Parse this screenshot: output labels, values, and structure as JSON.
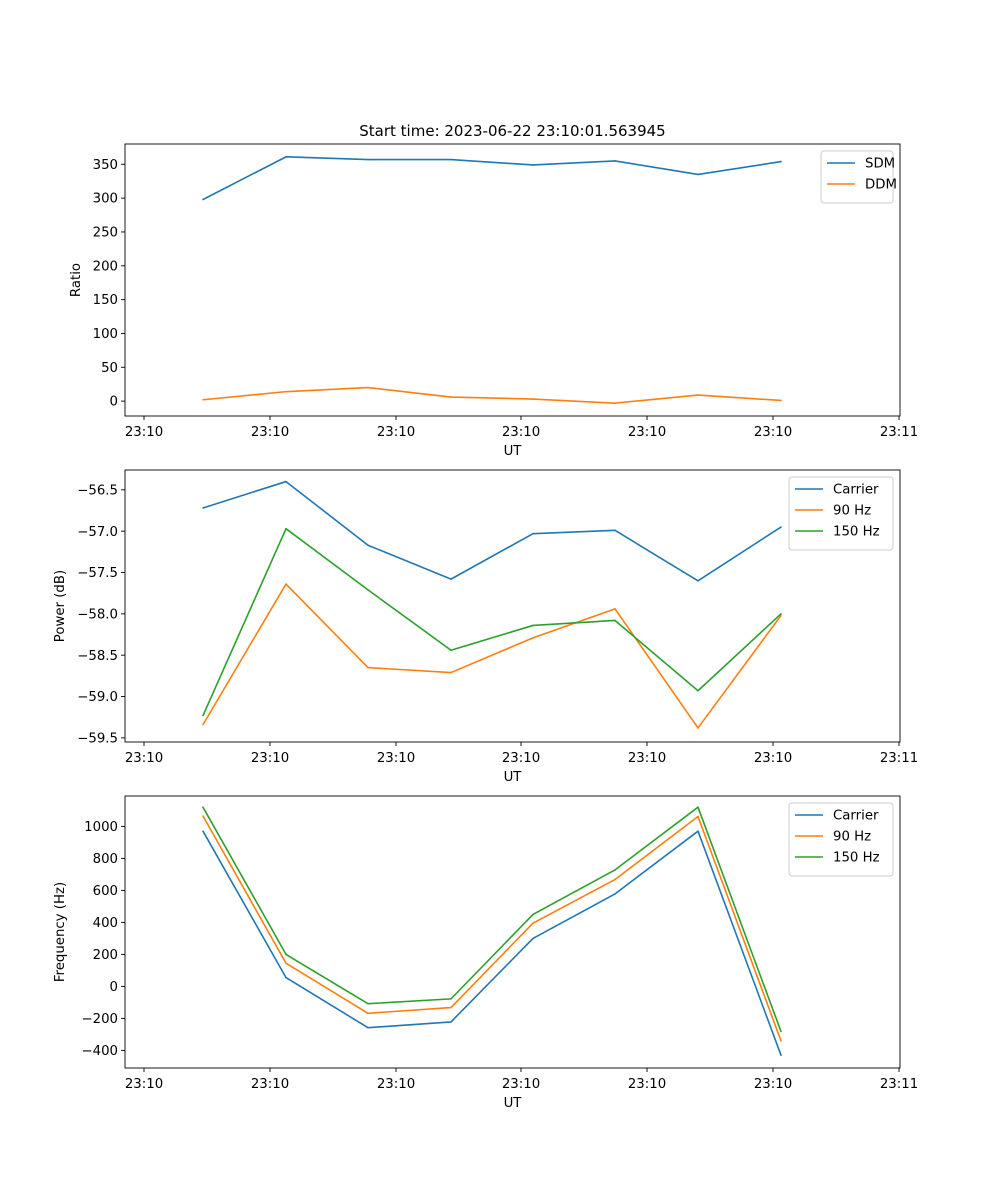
{
  "figure": {
    "title": "Start time: 2023-06-22 23:10:01.563945"
  },
  "chart_data": [
    {
      "type": "line",
      "title": "Start time: 2023-06-22 23:10:01.563945",
      "xlabel": "UT",
      "ylabel": "Ratio",
      "x_tick_labels": [
        "23:10",
        "23:10",
        "23:10",
        "23:10",
        "23:10",
        "23:10",
        "23:11"
      ],
      "x_index": [
        1,
        2,
        3,
        4,
        5,
        6,
        7,
        8
      ],
      "yticks": [
        0,
        50,
        100,
        150,
        200,
        250,
        300,
        350
      ],
      "ylim": [
        -22,
        380
      ],
      "legend_position": "top-right",
      "series": [
        {
          "name": "SDM",
          "color": "#1f77b4",
          "values": [
            298,
            361,
            357,
            357,
            349,
            355,
            335,
            354
          ]
        },
        {
          "name": "DDM",
          "color": "#ff7f0e",
          "values": [
            2,
            14,
            20,
            6,
            3,
            -3,
            9,
            1
          ]
        }
      ]
    },
    {
      "type": "line",
      "title": "",
      "xlabel": "UT",
      "ylabel": "Power (dB)",
      "x_tick_labels": [
        "23:10",
        "23:10",
        "23:10",
        "23:10",
        "23:10",
        "23:10",
        "23:11"
      ],
      "x_index": [
        1,
        2,
        3,
        4,
        5,
        6,
        7,
        8
      ],
      "yticks": [
        -59.5,
        -59.0,
        -58.5,
        -58.0,
        -57.5,
        -57.0,
        -56.5
      ],
      "ytick_labels": [
        "−59.5",
        "−59.0",
        "−58.5",
        "−58.0",
        "−57.5",
        "−57.0",
        "−56.5"
      ],
      "ylim": [
        -59.55,
        -56.26
      ],
      "legend_position": "top-right",
      "series": [
        {
          "name": "Carrier",
          "color": "#1f77b4",
          "values": [
            -56.72,
            -56.4,
            -57.17,
            -57.58,
            -57.03,
            -56.99,
            -57.6,
            -56.95
          ]
        },
        {
          "name": "90 Hz",
          "color": "#ff7f0e",
          "values": [
            -59.34,
            -57.64,
            -58.65,
            -58.71,
            -58.29,
            -57.94,
            -59.38,
            -58.02
          ]
        },
        {
          "name": "150 Hz",
          "color": "#2ca02c",
          "values": [
            -59.23,
            -56.97,
            -57.71,
            -58.44,
            -58.14,
            -58.08,
            -58.93,
            -58.0
          ]
        }
      ]
    },
    {
      "type": "line",
      "title": "",
      "xlabel": "UT",
      "ylabel": "Frequency (Hz)",
      "x_tick_labels": [
        "23:10",
        "23:10",
        "23:10",
        "23:10",
        "23:10",
        "23:10",
        "23:11"
      ],
      "x_index": [
        1,
        2,
        3,
        4,
        5,
        6,
        7,
        8
      ],
      "yticks": [
        -400,
        -200,
        0,
        200,
        400,
        600,
        800,
        1000
      ],
      "ytick_labels": [
        "−400",
        "−200",
        "0",
        "200",
        "400",
        "600",
        "800",
        "1000"
      ],
      "ylim": [
        -510,
        1190
      ],
      "legend_position": "top-right",
      "series": [
        {
          "name": "Carrier",
          "color": "#1f77b4",
          "values": [
            970,
            55,
            -258,
            -222,
            300,
            578,
            970,
            -430
          ]
        },
        {
          "name": "90 Hz",
          "color": "#ff7f0e",
          "values": [
            1065,
            145,
            -168,
            -132,
            395,
            668,
            1062,
            -340
          ]
        },
        {
          "name": "150 Hz",
          "color": "#2ca02c",
          "values": [
            1120,
            200,
            -108,
            -78,
            450,
            728,
            1120,
            -282
          ]
        }
      ]
    }
  ]
}
